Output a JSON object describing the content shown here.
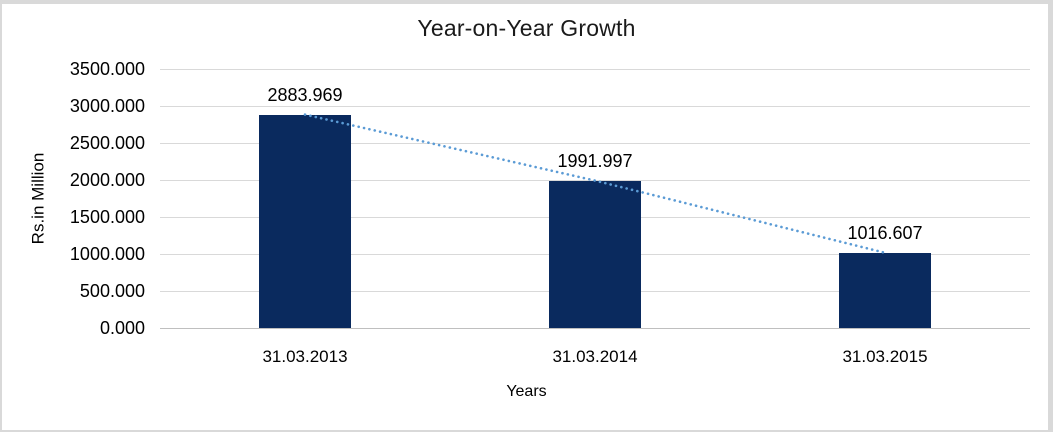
{
  "frame": {
    "background": "#ffffff",
    "edge_color": "#d9d9d9"
  },
  "chart_data": {
    "type": "bar",
    "title": "Year-on-Year Growth",
    "categories": [
      "31.03.2013",
      "31.03.2014",
      "31.03.2015"
    ],
    "values": [
      2883.969,
      1991.997,
      1016.607
    ],
    "data_labels": [
      "2883.969",
      "1991.997",
      "1016.607"
    ],
    "xlabel": "Years",
    "ylabel": "Rs.in Million",
    "ylim": [
      0,
      3500
    ],
    "ytick_step": 500,
    "ytick_labels": [
      "3500.000",
      "3000.000",
      "2500.000",
      "2000.000",
      "1500.000",
      "1000.000",
      "500.000",
      "0.000"
    ],
    "grid": true,
    "legend": "none",
    "colors": {
      "bar": "#0a2a5e",
      "trendline": "#5b9bd5",
      "gridline": "#d9d9d9",
      "axis_line": "#bfbfbf",
      "text": "#000000"
    },
    "trendline": {
      "style": "dotted",
      "connects": "bar-tops"
    }
  }
}
